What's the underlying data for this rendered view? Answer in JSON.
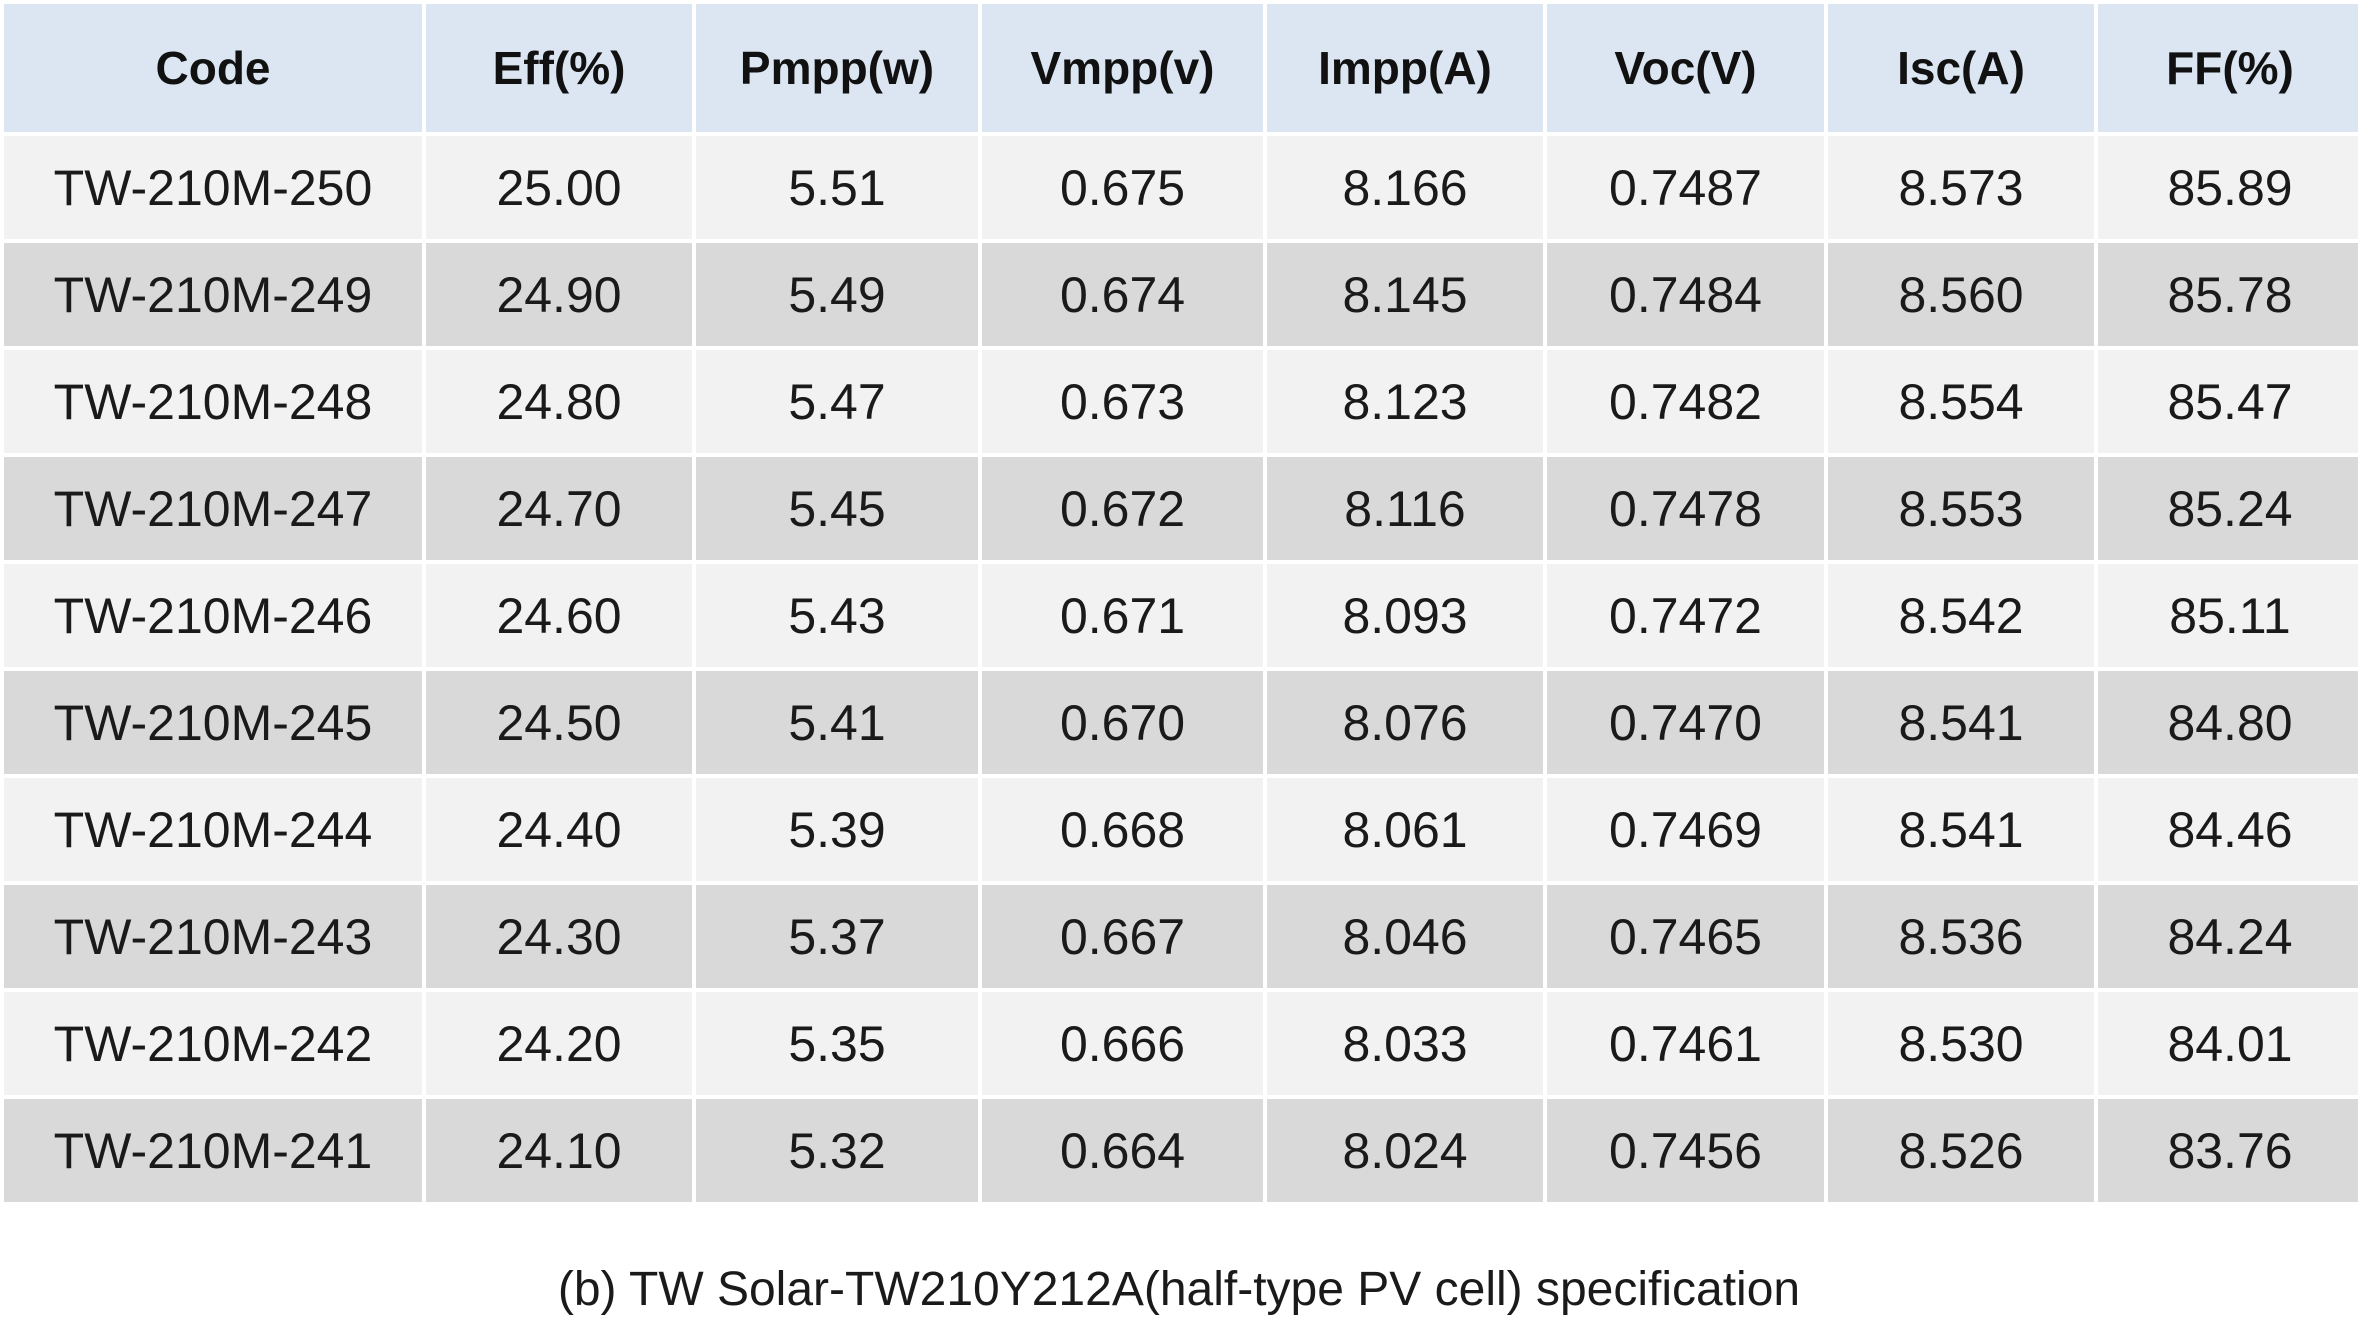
{
  "table": {
    "headers": [
      "Code",
      "Eff(%)",
      "Pmpp(w)",
      "Vmpp(v)",
      "Impp(A)",
      "Voc(V)",
      "Isc(A)",
      "FF(%)"
    ],
    "rows": [
      [
        "TW-210M-250",
        "25.00",
        "5.51",
        "0.675",
        "8.166",
        "0.7487",
        "8.573",
        "85.89"
      ],
      [
        "TW-210M-249",
        "24.90",
        "5.49",
        "0.674",
        "8.145",
        "0.7484",
        "8.560",
        "85.78"
      ],
      [
        "TW-210M-248",
        "24.80",
        "5.47",
        "0.673",
        "8.123",
        "0.7482",
        "8.554",
        "85.47"
      ],
      [
        "TW-210M-247",
        "24.70",
        "5.45",
        "0.672",
        "8.116",
        "0.7478",
        "8.553",
        "85.24"
      ],
      [
        "TW-210M-246",
        "24.60",
        "5.43",
        "0.671",
        "8.093",
        "0.7472",
        "8.542",
        "85.11"
      ],
      [
        "TW-210M-245",
        "24.50",
        "5.41",
        "0.670",
        "8.076",
        "0.7470",
        "8.541",
        "84.80"
      ],
      [
        "TW-210M-244",
        "24.40",
        "5.39",
        "0.668",
        "8.061",
        "0.7469",
        "8.541",
        "84.46"
      ],
      [
        "TW-210M-243",
        "24.30",
        "5.37",
        "0.667",
        "8.046",
        "0.7465",
        "8.536",
        "84.24"
      ],
      [
        "TW-210M-242",
        "24.20",
        "5.35",
        "0.666",
        "8.033",
        "0.7461",
        "8.530",
        "84.01"
      ],
      [
        "TW-210M-241",
        "24.10",
        "5.32",
        "0.664",
        "8.024",
        "0.7456",
        "8.526",
        "83.76"
      ]
    ]
  },
  "caption": "(b) TW Solar-TW210Y212A(half-type PV cell) specification",
  "colors": {
    "header_bg": "#dce6f2",
    "row_light": "#f2f2f2",
    "row_dark": "#d9d9d9"
  }
}
